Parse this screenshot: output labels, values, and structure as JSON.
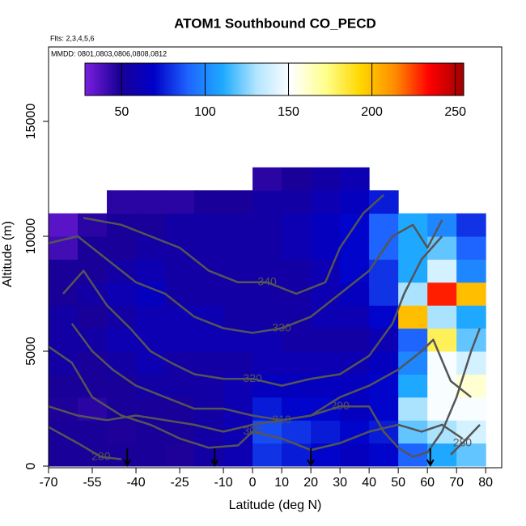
{
  "chart_data": {
    "type": "heatmap",
    "title": "ATOM1 Southbound CO_PECD",
    "subtitle_flights": "Flts: 2,3,4,5,6",
    "subtitle_dates": "MMDD: 0801,0803,0806,0808,0812",
    "x_label": "Latitude (deg N)",
    "y_label": "Altitude (m)",
    "xlim": [
      -70,
      85.5
    ],
    "xticks": [
      -70,
      -55,
      -40,
      -25,
      -10,
      0,
      10,
      20,
      30,
      40,
      50,
      60,
      70,
      80
    ],
    "ylim": [
      0,
      18240
    ],
    "yticks": [
      0,
      5000,
      10000,
      15000
    ],
    "clim": [
      28,
      255
    ],
    "cticks": [
      50,
      100,
      150,
      200,
      250
    ],
    "colormap": [
      "#7b1fe0",
      "#1a0096",
      "#0000c8",
      "#1e64ff",
      "#1eaaff",
      "#b4e6ff",
      "#ffffff",
      "#ffff8c",
      "#ffd700",
      "#ff8c00",
      "#ff0000",
      "#a00000"
    ],
    "lat_bins": [
      -70,
      -60,
      -50,
      -40,
      -30,
      -20,
      -10,
      0,
      10,
      20,
      30,
      40,
      50,
      60,
      70,
      80
    ],
    "alt_bins": [
      0,
      1000,
      2000,
      3000,
      4000,
      5000,
      6000,
      7000,
      8000,
      9000,
      10000,
      11000,
      12000,
      13000
    ],
    "values": [
      [
        50,
        50,
        50,
        50,
        48,
        55,
        60,
        80,
        75,
        70,
        65,
        70,
        90,
        110,
        120
      ],
      [
        50,
        50,
        48,
        50,
        50,
        55,
        60,
        85,
        80,
        75,
        70,
        75,
        120,
        130,
        140
      ],
      [
        48,
        45,
        50,
        50,
        50,
        55,
        60,
        75,
        70,
        70,
        65,
        70,
        130,
        150,
        150
      ],
      [
        50,
        50,
        50,
        55,
        55,
        55,
        60,
        65,
        65,
        65,
        65,
        70,
        110,
        150,
        160
      ],
      [
        55,
        50,
        55,
        60,
        55,
        55,
        55,
        60,
        60,
        60,
        60,
        65,
        100,
        150,
        140
      ],
      [
        55,
        55,
        60,
        60,
        60,
        60,
        60,
        60,
        55,
        55,
        55,
        60,
        90,
        180,
        120
      ],
      [
        55,
        50,
        55,
        60,
        60,
        60,
        55,
        55,
        55,
        60,
        60,
        70,
        200,
        130,
        110
      ],
      [
        50,
        55,
        60,
        65,
        55,
        55,
        55,
        55,
        55,
        60,
        65,
        80,
        130,
        230,
        200
      ],
      [
        50,
        50,
        55,
        60,
        55,
        55,
        55,
        55,
        55,
        60,
        70,
        80,
        110,
        140,
        100
      ],
      [
        40,
        50,
        50,
        55,
        55,
        55,
        55,
        55,
        60,
        65,
        70,
        90,
        110,
        120,
        90
      ],
      [
        35,
        45,
        50,
        50,
        55,
        55,
        55,
        55,
        60,
        65,
        70,
        90,
        110,
        100,
        80
      ],
      [
        null,
        null,
        45,
        45,
        45,
        50,
        50,
        55,
        55,
        60,
        65,
        75,
        null,
        null,
        null
      ],
      [
        null,
        null,
        null,
        null,
        null,
        null,
        null,
        45,
        50,
        55,
        60,
        null,
        null,
        null,
        null
      ]
    ],
    "contours": [
      {
        "level": 340,
        "lat": [
          -58,
          -45,
          -35,
          -25,
          -15,
          -5,
          5,
          15,
          25,
          30,
          38,
          45
        ],
        "alt": [
          10800,
          10500,
          10000,
          9500,
          8500,
          8000,
          8000,
          7500,
          8000,
          9500,
          11000,
          11800
        ]
      },
      {
        "level": 330,
        "lat": [
          -70,
          -60,
          -50,
          -40,
          -30,
          -20,
          -10,
          0,
          10,
          20,
          30,
          40,
          48,
          55,
          60,
          65
        ],
        "alt": [
          9700,
          10000,
          9000,
          8000,
          7500,
          6500,
          6000,
          5800,
          6000,
          6500,
          7500,
          8500,
          10000,
          10500,
          9500,
          10700
        ]
      },
      {
        "level": 320,
        "lat": [
          -65,
          -58,
          -50,
          -42,
          -35,
          -28,
          -20,
          -10,
          0,
          10,
          20,
          30,
          40,
          48,
          52,
          58,
          65
        ],
        "alt": [
          7500,
          8500,
          7000,
          6000,
          5000,
          4500,
          4000,
          3800,
          3800,
          3500,
          3800,
          4000,
          4800,
          6200,
          7500,
          9000,
          10000
        ]
      },
      {
        "level": 310,
        "lat": [
          -62,
          -55,
          -48,
          -40,
          -30,
          -20,
          -10,
          0,
          10,
          20,
          30,
          40,
          50,
          58,
          62,
          68,
          75
        ],
        "alt": [
          6200,
          5000,
          4200,
          3500,
          3000,
          2500,
          2500,
          2200,
          2000,
          2200,
          3000,
          3500,
          4200,
          5000,
          5500,
          3700,
          3000
        ]
      },
      {
        "level": 300,
        "lat": [
          -70,
          -62,
          -55,
          -45,
          -35,
          -25,
          -15,
          -5,
          0,
          10,
          20,
          30,
          40,
          50,
          58,
          65,
          72
        ],
        "alt": [
          5200,
          4500,
          3000,
          2200,
          1800,
          1200,
          800,
          900,
          1500,
          1200,
          700,
          1000,
          1500,
          1800,
          1500,
          1800,
          1200
        ]
      },
      {
        "level": 290,
        "lat": [
          -70,
          -60,
          -50,
          -40,
          -30,
          -20,
          -10,
          0,
          10,
          20,
          30,
          40,
          45,
          50,
          55,
          60,
          65,
          70,
          75,
          78
        ],
        "alt": [
          2600,
          2200,
          2000,
          2200,
          2000,
          1800,
          1500,
          1800,
          2000,
          2200,
          2600,
          2600,
          1500,
          800,
          400,
          600,
          1500,
          3000,
          5000,
          6000
        ]
      },
      {
        "level": 280,
        "lat": [
          -70,
          -60,
          -52,
          -45
        ],
        "alt": [
          1700,
          1000,
          400,
          300
        ]
      },
      {
        "level": 280,
        "lat": [
          68,
          72,
          78
        ],
        "alt": [
          500,
          1000,
          1800
        ]
      }
    ],
    "turn_markers_lat": [
      -43,
      -13,
      20,
      61
    ]
  }
}
